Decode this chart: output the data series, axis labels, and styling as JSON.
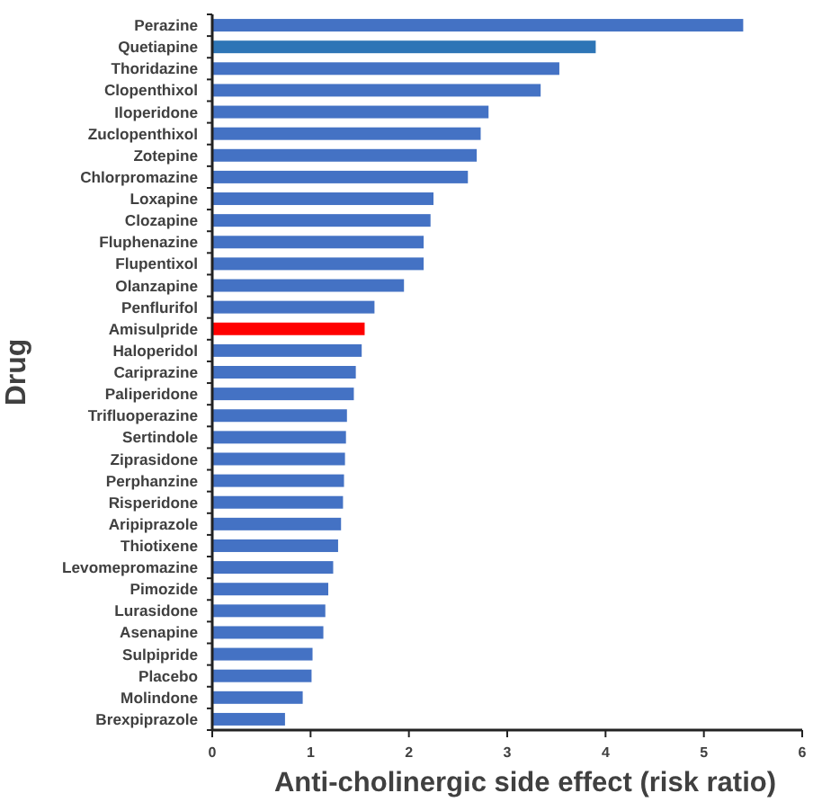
{
  "chart_data": {
    "type": "bar",
    "orientation": "horizontal",
    "xlabel": "Anti-cholinergic side effect (risk ratio)",
    "ylabel": "Drug",
    "categories": [
      "Perazine",
      "Quetiapine",
      "Thoridazine",
      "Clopenthixol",
      "Iloperidone",
      "Zuclopenthixol",
      "Zotepine",
      "Chlorpromazine",
      "Loxapine",
      "Clozapine",
      "Fluphenazine",
      "Flupentixol",
      "Olanzapine",
      "Penflurifol",
      "Amisulpride",
      "Haloperidol",
      "Cariprazine",
      "Paliperidone",
      "Trifluoperazine",
      "Sertindole",
      "Ziprasidone",
      "Perphanzine",
      "Risperidone",
      "Aripiprazole",
      "Thiotixene",
      "Levomepromazine",
      "Pimozide",
      "Lurasidone",
      "Asenapine",
      "Sulpipride",
      "Placebo",
      "Molindone",
      "Brexpiprazole"
    ],
    "values": [
      5.4,
      3.9,
      3.53,
      3.34,
      2.81,
      2.73,
      2.69,
      2.6,
      2.25,
      2.22,
      2.15,
      2.15,
      1.95,
      1.65,
      1.55,
      1.52,
      1.46,
      1.44,
      1.37,
      1.36,
      1.35,
      1.34,
      1.33,
      1.31,
      1.28,
      1.23,
      1.18,
      1.15,
      1.13,
      1.02,
      1.01,
      0.92,
      0.74
    ],
    "colors": [
      "#4472c4",
      "#2e75b6",
      "#4472c4",
      "#4472c4",
      "#4472c4",
      "#4472c4",
      "#4472c4",
      "#4472c4",
      "#4472c4",
      "#4472c4",
      "#4472c4",
      "#4472c4",
      "#4472c4",
      "#4472c4",
      "#ff0000",
      "#4472c4",
      "#4472c4",
      "#4472c4",
      "#4472c4",
      "#4472c4",
      "#4472c4",
      "#4472c4",
      "#4472c4",
      "#4472c4",
      "#4472c4",
      "#4472c4",
      "#4472c4",
      "#4472c4",
      "#4472c4",
      "#4472c4",
      "#4472c4",
      "#4472c4",
      "#4472c4"
    ],
    "xlim": [
      0,
      6
    ],
    "xticks": [
      0,
      1,
      2,
      3,
      4,
      5,
      6
    ],
    "grid": false
  }
}
